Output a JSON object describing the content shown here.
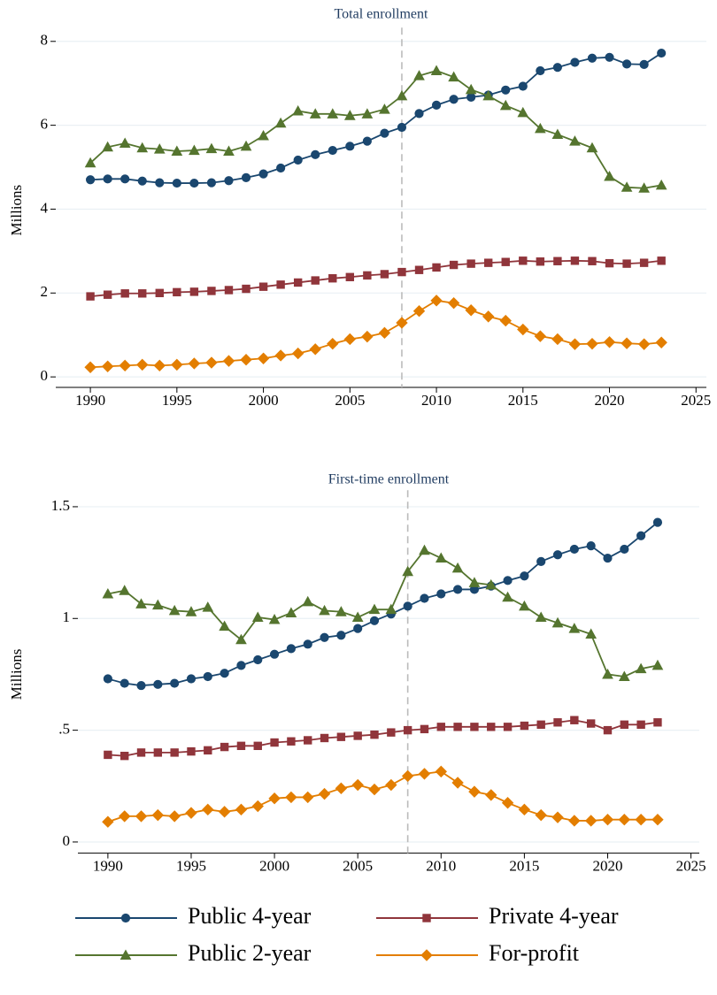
{
  "chart_data": [
    {
      "type": "line",
      "title": "Total enrollment",
      "y_label": "Millions",
      "x": [
        1990,
        1991,
        1992,
        1993,
        1994,
        1995,
        1996,
        1997,
        1998,
        1999,
        2000,
        2001,
        2002,
        2003,
        2004,
        2005,
        2006,
        2007,
        2008,
        2009,
        2010,
        2011,
        2012,
        2013,
        2014,
        2015,
        2016,
        2017,
        2018,
        2019,
        2020,
        2021,
        2022,
        2023
      ],
      "xlim": [
        1988,
        2025.6
      ],
      "xticks": [
        1990,
        1995,
        2000,
        2005,
        2010,
        2015,
        2020,
        2025
      ],
      "ylim": [
        -0.25,
        8.2
      ],
      "yticks": [
        0,
        2,
        4,
        6,
        8
      ],
      "grid": true,
      "vline": 2008,
      "series": [
        {
          "name": "Public 4-year",
          "color": "#1a476f",
          "marker": "circle",
          "values": [
            4.7,
            4.72,
            4.72,
            4.67,
            4.63,
            4.62,
            4.62,
            4.63,
            4.68,
            4.75,
            4.84,
            4.98,
            5.17,
            5.3,
            5.4,
            5.5,
            5.62,
            5.81,
            5.95,
            6.28,
            6.48,
            6.62,
            6.67,
            6.72,
            6.84,
            6.93,
            7.3,
            7.38,
            7.5,
            7.6,
            7.62,
            7.46,
            7.45,
            7.72
          ]
        },
        {
          "name": "Private 4-year",
          "color": "#90353b",
          "marker": "square",
          "values": [
            1.92,
            1.96,
            1.99,
            1.99,
            2.0,
            2.02,
            2.03,
            2.05,
            2.07,
            2.1,
            2.15,
            2.2,
            2.25,
            2.3,
            2.35,
            2.38,
            2.42,
            2.45,
            2.5,
            2.55,
            2.61,
            2.67,
            2.7,
            2.72,
            2.74,
            2.77,
            2.75,
            2.76,
            2.77,
            2.76,
            2.71,
            2.7,
            2.72,
            2.77
          ]
        },
        {
          "name": "Public 2-year",
          "color": "#55752f",
          "marker": "triangle",
          "values": [
            5.1,
            5.48,
            5.57,
            5.46,
            5.43,
            5.38,
            5.4,
            5.44,
            5.38,
            5.5,
            5.75,
            6.05,
            6.34,
            6.27,
            6.27,
            6.23,
            6.27,
            6.38,
            6.7,
            7.18,
            7.3,
            7.15,
            6.85,
            6.7,
            6.47,
            6.3,
            5.92,
            5.78,
            5.62,
            5.46,
            4.78,
            4.52,
            4.5,
            4.57
          ]
        },
        {
          "name": "For-profit",
          "color": "#e37e00",
          "marker": "diamond",
          "values": [
            0.23,
            0.25,
            0.27,
            0.29,
            0.27,
            0.29,
            0.32,
            0.34,
            0.38,
            0.41,
            0.44,
            0.51,
            0.56,
            0.66,
            0.79,
            0.9,
            0.96,
            1.05,
            1.29,
            1.57,
            1.82,
            1.76,
            1.59,
            1.44,
            1.34,
            1.13,
            0.97,
            0.9,
            0.78,
            0.79,
            0.83,
            0.8,
            0.78,
            0.82
          ]
        }
      ]
    },
    {
      "type": "line",
      "title": "First-time enrollment",
      "y_label": "Millions",
      "x": [
        1990,
        1991,
        1992,
        1993,
        1994,
        1995,
        1996,
        1997,
        1998,
        1999,
        2000,
        2001,
        2002,
        2003,
        2004,
        2005,
        2006,
        2007,
        2008,
        2009,
        2010,
        2011,
        2012,
        2013,
        2014,
        2015,
        2016,
        2017,
        2018,
        2019,
        2020,
        2021,
        2022,
        2023
      ],
      "xlim": [
        1988.2,
        2025.5
      ],
      "xticks": [
        1990,
        1995,
        2000,
        2005,
        2010,
        2015,
        2020,
        2025
      ],
      "ylim": [
        -0.05,
        1.55
      ],
      "yticks": [
        0,
        {
          "value": 0.5,
          "label": ".5"
        },
        1,
        1.5
      ],
      "grid": true,
      "vline": 2008,
      "series": [
        {
          "name": "Public 4-year",
          "color": "#1a476f",
          "marker": "circle",
          "values": [
            0.73,
            0.71,
            0.7,
            0.705,
            0.71,
            0.73,
            0.74,
            0.755,
            0.79,
            0.815,
            0.84,
            0.865,
            0.885,
            0.915,
            0.925,
            0.955,
            0.99,
            1.02,
            1.055,
            1.09,
            1.11,
            1.13,
            1.13,
            1.145,
            1.17,
            1.19,
            1.255,
            1.285,
            1.31,
            1.325,
            1.27,
            1.31,
            1.37,
            1.43
          ]
        },
        {
          "name": "Private 4-year",
          "color": "#90353b",
          "marker": "square",
          "values": [
            0.39,
            0.385,
            0.4,
            0.4,
            0.4,
            0.405,
            0.41,
            0.425,
            0.43,
            0.43,
            0.445,
            0.45,
            0.455,
            0.465,
            0.47,
            0.475,
            0.48,
            0.49,
            0.5,
            0.505,
            0.515,
            0.515,
            0.515,
            0.515,
            0.515,
            0.52,
            0.525,
            0.535,
            0.545,
            0.53,
            0.5,
            0.525,
            0.525,
            0.535
          ]
        },
        {
          "name": "Public 2-year",
          "color": "#55752f",
          "marker": "triangle",
          "values": [
            1.11,
            1.125,
            1.065,
            1.06,
            1.035,
            1.03,
            1.05,
            0.965,
            0.905,
            1.005,
            0.995,
            1.025,
            1.075,
            1.035,
            1.03,
            1.005,
            1.04,
            1.04,
            1.21,
            1.305,
            1.27,
            1.225,
            1.16,
            1.15,
            1.095,
            1.055,
            1.005,
            0.98,
            0.955,
            0.93,
            0.75,
            0.74,
            0.775,
            0.79
          ]
        },
        {
          "name": "For-profit",
          "color": "#e37e00",
          "marker": "diamond",
          "values": [
            0.09,
            0.115,
            0.115,
            0.12,
            0.115,
            0.13,
            0.145,
            0.135,
            0.145,
            0.16,
            0.195,
            0.2,
            0.2,
            0.215,
            0.24,
            0.255,
            0.235,
            0.255,
            0.295,
            0.305,
            0.315,
            0.265,
            0.225,
            0.21,
            0.175,
            0.145,
            0.12,
            0.11,
            0.095,
            0.095,
            0.1,
            0.1,
            0.1,
            0.1
          ]
        }
      ]
    }
  ]
}
